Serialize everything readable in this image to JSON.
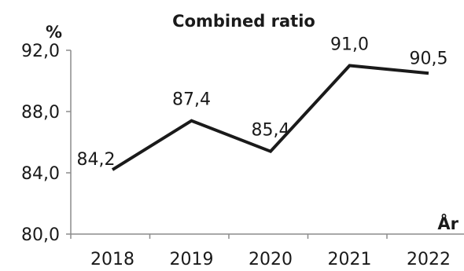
{
  "chart_data": {
    "type": "line",
    "title": "Combined ratio",
    "ylabel": "%",
    "xlabel": "År",
    "categories": [
      "2018",
      "2019",
      "2020",
      "2021",
      "2022"
    ],
    "values": [
      84.2,
      87.4,
      85.4,
      91.0,
      90.5
    ],
    "data_labels": [
      "84,2",
      "87,4",
      "85,4",
      "91,0",
      "90,5"
    ],
    "ylim": [
      80,
      92
    ],
    "yticks": [
      80,
      84,
      88,
      92
    ],
    "ytick_labels": [
      "80,0",
      "84,0",
      "88,0",
      "92,0"
    ],
    "grid": false,
    "legend": "none",
    "line_color": "#1a1a1a"
  }
}
